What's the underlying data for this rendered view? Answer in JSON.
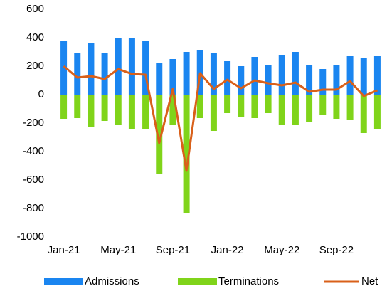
{
  "chart_data": {
    "type": "bar",
    "categories": [
      "Jan-21",
      null,
      null,
      null,
      "May-21",
      null,
      null,
      null,
      "Sep-21",
      null,
      null,
      null,
      "Jan-22",
      null,
      null,
      null,
      "May-22",
      null,
      null,
      null,
      "Sep-22",
      null,
      null,
      null
    ],
    "series": [
      {
        "name": "Admissions",
        "type": "bar",
        "color": "#1a85f0",
        "values": [
          375,
          290,
          360,
          295,
          395,
          395,
          380,
          220,
          250,
          300,
          315,
          295,
          235,
          200,
          265,
          210,
          275,
          300,
          210,
          180,
          205,
          270,
          260,
          270
        ]
      },
      {
        "name": "Terminations",
        "type": "bar",
        "color": "#80d41a",
        "values": [
          -170,
          -165,
          -230,
          -185,
          -215,
          -245,
          -240,
          -555,
          -210,
          -830,
          -165,
          -255,
          -130,
          -155,
          -165,
          -130,
          -210,
          -215,
          -190,
          -140,
          -170,
          -175,
          -270,
          -240
        ]
      },
      {
        "name": "Net",
        "type": "line",
        "color": "#d9601a",
        "values": [
          200,
          120,
          130,
          110,
          180,
          145,
          140,
          -340,
          40,
          -535,
          150,
          40,
          105,
          45,
          100,
          80,
          65,
          85,
          20,
          35,
          35,
          95,
          -10,
          30
        ]
      }
    ],
    "ylim": [
      -1000,
      600
    ],
    "yticks": [
      -1000,
      -800,
      -600,
      -400,
      -200,
      0,
      200,
      400,
      600
    ],
    "legend": "bottom"
  }
}
